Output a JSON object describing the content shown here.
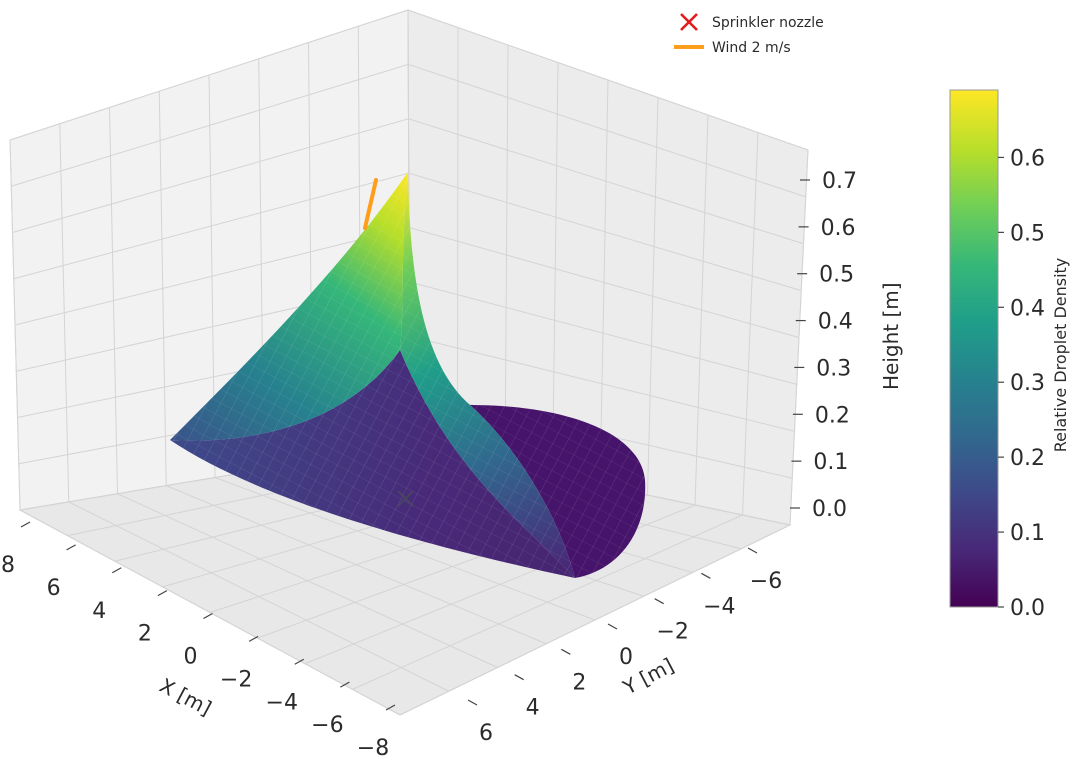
{
  "chart_data": {
    "type": "surface3d",
    "xlabel": "X [m]",
    "ylabel": "Y [m]",
    "zlabel": "Height [m]",
    "xlim": [
      -8,
      8
    ],
    "ylim": [
      -8,
      8
    ],
    "zlim": [
      0,
      0.75
    ],
    "x_ticks": [
      "8",
      "6",
      "4",
      "2",
      "0",
      "−2",
      "−4",
      "−6",
      "−8"
    ],
    "y_ticks": [
      "−6",
      "−4",
      "−2",
      "0",
      "2",
      "4",
      "6"
    ],
    "z_ticks": [
      "0.7",
      "0.6",
      "0.5",
      "0.4",
      "0.3",
      "0.2",
      "0.1",
      "0.0"
    ],
    "colormap": "viridis",
    "colorbar": {
      "label": "Relative Droplet Density",
      "ticks": [
        "0.6",
        "0.5",
        "0.4",
        "0.3",
        "0.2",
        "0.1",
        "0.0"
      ],
      "range": [
        0,
        0.69
      ]
    },
    "legend": {
      "position": "top-right",
      "items": [
        {
          "label": "Sprinkler nozzle",
          "marker": "x",
          "color": "#e41a1c"
        },
        {
          "label": "Wind 2 m/s",
          "marker": "line",
          "color": "#ff9e1b"
        }
      ]
    },
    "series": [
      {
        "name": "Sprinkler nozzle",
        "kind": "point",
        "x": 0,
        "y": 0,
        "z": 0
      },
      {
        "name": "Wind 2 m/s",
        "kind": "arrow",
        "z_range": [
          0.6,
          0.7
        ]
      }
    ],
    "surface": {
      "description_values": {
        "peak_height": 0.69,
        "peak_density": 0.69,
        "min_density": 0.0
      }
    },
    "grid": true
  }
}
